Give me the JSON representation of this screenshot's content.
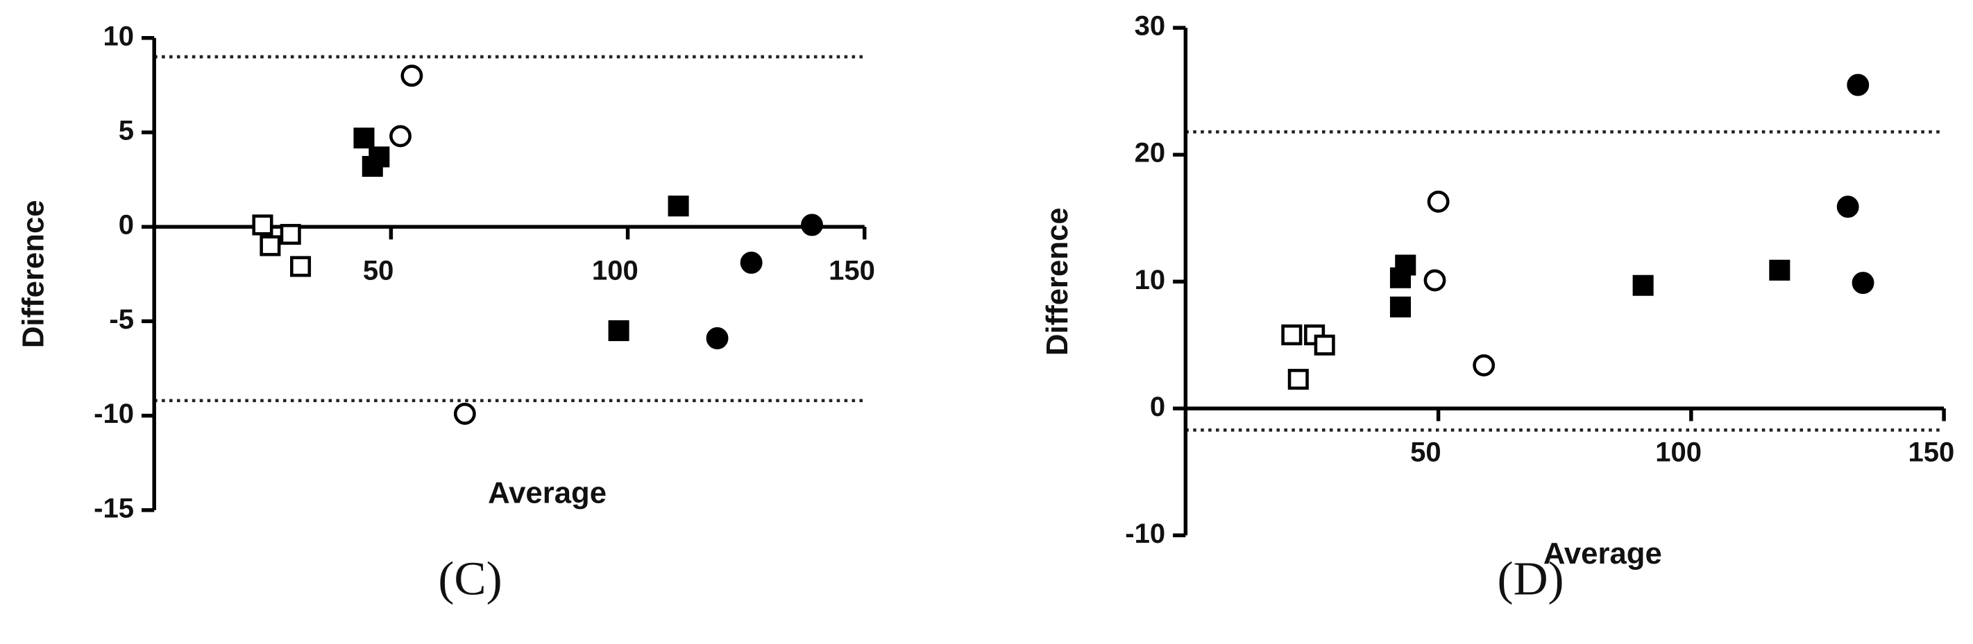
{
  "chart_data": [
    {
      "type": "scatter",
      "panel_label": "(C)",
      "x_label": "Average",
      "y_label": "Difference",
      "xlim": [
        0,
        150
      ],
      "xticks": [
        50,
        100,
        150
      ],
      "ylim": [
        -15,
        10
      ],
      "yticks": [
        -15,
        -10,
        -5,
        0,
        5,
        10
      ],
      "reference_lines": [
        9.0,
        -9.2
      ],
      "reference_style": "dotted",
      "series": [
        {
          "marker": "square",
          "filled": false,
          "color": "#000000",
          "x": [
            22.9,
            24.5,
            28.8,
            30.9
          ],
          "values": [
            0.1,
            -1.0,
            -0.4,
            -2.1
          ]
        },
        {
          "marker": "square",
          "filled": true,
          "color": "#000000",
          "x": [
            44.3,
            46.1,
            47.5,
            98.1,
            110.7
          ],
          "values": [
            4.7,
            3.2,
            3.7,
            -5.5,
            1.1
          ]
        },
        {
          "marker": "circle",
          "filled": false,
          "color": "#000000",
          "x": [
            52.0,
            54.4,
            65.6
          ],
          "values": [
            4.8,
            8.0,
            -9.9
          ]
        },
        {
          "marker": "circle",
          "filled": true,
          "color": "#000000",
          "x": [
            118.9,
            126.1,
            138.9
          ],
          "values": [
            -5.9,
            -1.9,
            0.1
          ]
        }
      ]
    },
    {
      "type": "scatter",
      "panel_label": "(D)",
      "x_label": "Average",
      "y_label": "Difference",
      "xlim": [
        0,
        150
      ],
      "xticks": [
        50,
        100,
        150
      ],
      "ylim": [
        -10,
        30
      ],
      "yticks": [
        -10,
        0,
        10,
        20,
        30
      ],
      "reference_lines": [
        21.8,
        -1.7
      ],
      "reference_style": "dotted",
      "series": [
        {
          "marker": "square",
          "filled": false,
          "color": "#000000",
          "x": [
            21.0,
            25.5,
            27.5,
            22.3
          ],
          "values": [
            5.8,
            5.8,
            5.0,
            2.3
          ]
        },
        {
          "marker": "square",
          "filled": true,
          "color": "#000000",
          "x": [
            42.5,
            43.5,
            42.5,
            90.5,
            117.5
          ],
          "values": [
            10.3,
            11.3,
            8.0,
            9.7,
            10.9
          ]
        },
        {
          "marker": "circle",
          "filled": false,
          "color": "#000000",
          "x": [
            50.0,
            49.3,
            59.0
          ],
          "values": [
            16.3,
            10.1,
            3.4
          ]
        },
        {
          "marker": "circle",
          "filled": true,
          "color": "#000000",
          "x": [
            133.0,
            131.0,
            134.0
          ],
          "values": [
            25.5,
            15.9,
            9.9
          ]
        }
      ]
    }
  ]
}
